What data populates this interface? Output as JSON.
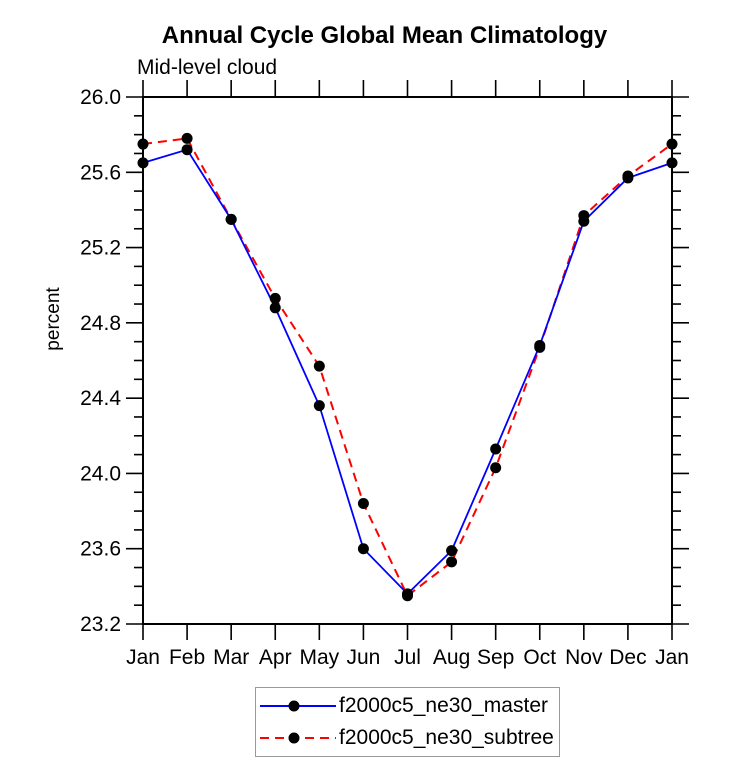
{
  "header": {
    "title": "Annual Cycle Global Mean Climatology",
    "subtitle": "Mid-level cloud"
  },
  "chart_data": {
    "type": "line",
    "title": "Annual Cycle Global Mean Climatology",
    "subtitle": "Mid-level cloud",
    "xlabel": "",
    "ylabel": "percent",
    "categories": [
      "Jan",
      "Feb",
      "Mar",
      "Apr",
      "May",
      "Jun",
      "Jul",
      "Aug",
      "Sep",
      "Oct",
      "Nov",
      "Dec",
      "Jan"
    ],
    "series": [
      {
        "name": "f2000c5_ne30_master",
        "color": "#0000ff",
        "line_style": "solid",
        "marker": "black-dot",
        "values": [
          25.65,
          25.72,
          25.35,
          24.88,
          24.36,
          23.6,
          23.36,
          23.59,
          24.13,
          24.68,
          25.34,
          25.57,
          25.65
        ]
      },
      {
        "name": "f2000c5_ne30_subtree",
        "color": "#ff0000",
        "line_style": "dashed",
        "marker": "black-dot",
        "values": [
          25.75,
          25.78,
          25.35,
          24.93,
          24.57,
          23.84,
          23.35,
          23.53,
          24.03,
          24.67,
          25.37,
          25.58,
          25.75
        ]
      }
    ],
    "ylim": [
      23.2,
      26.0
    ],
    "yticks_major": [
      23.2,
      23.6,
      24.0,
      24.4,
      24.8,
      25.2,
      25.6,
      26.0
    ],
    "ytick_minor_step": 0.1,
    "ytick_label_decimals": 1,
    "grid": false,
    "frame_color": "#000000",
    "marker_color": "#000000",
    "legend_position": "bottom-center"
  },
  "legend": {
    "items": [
      {
        "label": "f2000c5_ne30_master",
        "color": "#0000ff",
        "line_style": "solid"
      },
      {
        "label": "f2000c5_ne30_subtree",
        "color": "#ff0000",
        "line_style": "dashed"
      }
    ]
  }
}
